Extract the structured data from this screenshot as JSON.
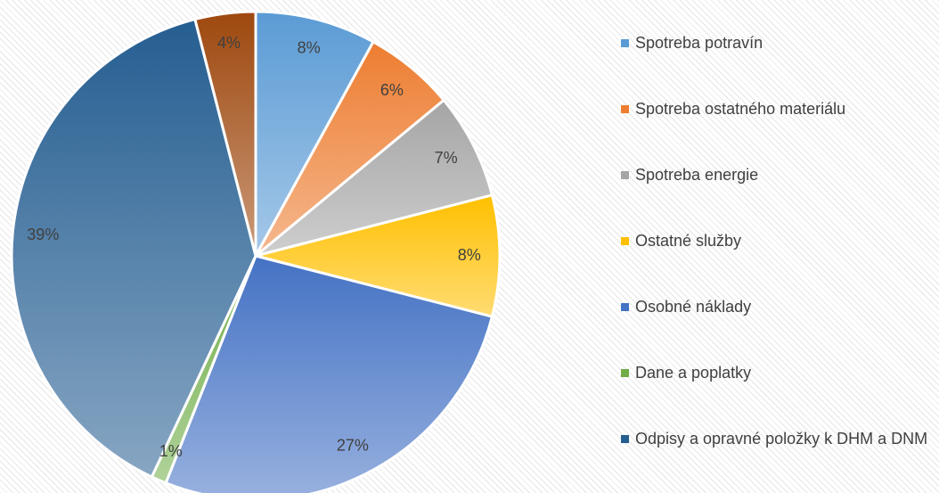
{
  "chart_data": {
    "type": "pie",
    "categories": [
      "Spotreba potravín",
      "Spotreba ostatného materiálu",
      "Spotreba energie",
      "Ostatné služby",
      "Osobné náklady",
      "Dane a poplatky",
      "Odpisy a opravné položky k DHM a DNM",
      null
    ],
    "values": [
      8,
      6,
      7,
      8,
      27,
      1,
      39,
      4
    ],
    "value_labels": [
      "8%",
      "6%",
      "7%",
      "8%",
      "27%",
      "1%",
      "39%",
      "4%"
    ],
    "colors": [
      "#5b9bd5",
      "#ed7d31",
      "#a5a5a5",
      "#ffc000",
      "#4472c4",
      "#70ad47",
      "#255e91",
      "#9e480e"
    ],
    "legend": "right"
  }
}
